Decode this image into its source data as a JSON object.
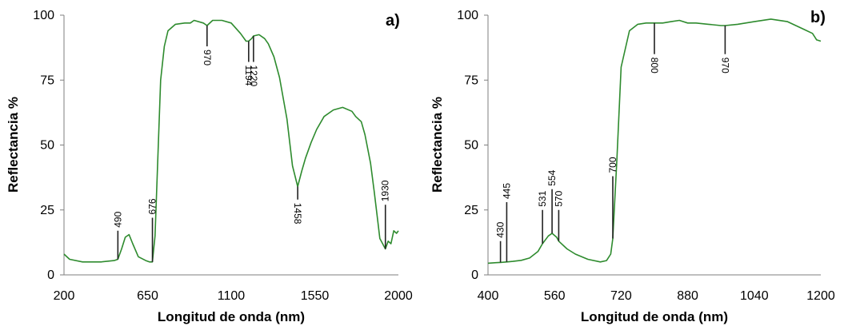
{
  "chart_data": [
    {
      "type": "line",
      "panel_label": "a)",
      "xlabel": "Longitud de onda (nm)",
      "ylabel": "Reflectancia %",
      "xlim": [
        200,
        2000
      ],
      "ylim": [
        0,
        100
      ],
      "xticks": [
        200,
        650,
        1100,
        1550,
        2000
      ],
      "yticks": [
        0,
        25,
        50,
        75,
        100
      ],
      "grid": false,
      "color": "#2e8b2e",
      "series": [
        {
          "x": [
            200,
            230,
            300,
            400,
            470,
            490,
            510,
            530,
            550,
            570,
            600,
            640,
            660,
            676,
            690,
            705,
            720,
            740,
            760,
            800,
            850,
            880,
            900,
            950,
            970,
            1000,
            1050,
            1100,
            1150,
            1180,
            1194,
            1210,
            1220,
            1250,
            1280,
            1300,
            1330,
            1360,
            1400,
            1430,
            1458,
            1480,
            1500,
            1530,
            1560,
            1600,
            1650,
            1700,
            1750,
            1770,
            1800,
            1820,
            1850,
            1870,
            1890,
            1900,
            1915,
            1930,
            1945,
            1960,
            1975,
            1990,
            2000
          ],
          "y": [
            8,
            6,
            5,
            5,
            5.5,
            6,
            10,
            14.5,
            15.5,
            12,
            7,
            5.5,
            5,
            5,
            15,
            45,
            75,
            88,
            94,
            96.5,
            97,
            97,
            98,
            97,
            96,
            98,
            98,
            97,
            93,
            90,
            90,
            91,
            92,
            92.5,
            91,
            89,
            84,
            76,
            60,
            42,
            34,
            40,
            45,
            51,
            56,
            61,
            63.5,
            64.5,
            63,
            61,
            59,
            54,
            43,
            32,
            20,
            14,
            12,
            10,
            13,
            12,
            17,
            16,
            17
          ]
        }
      ],
      "annotations": [
        {
          "label": "490",
          "x": 490,
          "y_from": 6,
          "y_to": 17
        },
        {
          "label": "676",
          "x": 676,
          "y_from": 5,
          "y_to": 22
        },
        {
          "label": "970",
          "x": 970,
          "y_from": 96,
          "y_to": 88
        },
        {
          "label": "1194",
          "x": 1194,
          "y_from": 90,
          "y_to": 82
        },
        {
          "label": "1220",
          "x": 1220,
          "y_from": 92,
          "y_to": 82
        },
        {
          "label": "1458",
          "x": 1458,
          "y_from": 34,
          "y_to": 29
        },
        {
          "label": "1930",
          "x": 1930,
          "y_from": 10,
          "y_to": 27
        }
      ]
    },
    {
      "type": "line",
      "panel_label": "b)",
      "xlabel": "Longitud de onda (nm)",
      "ylabel": "Reflectancia %",
      "xlim": [
        400,
        1200
      ],
      "ylim": [
        0,
        100
      ],
      "xticks": [
        400,
        560,
        720,
        880,
        1040,
        1200
      ],
      "yticks": [
        0,
        25,
        50,
        75,
        100
      ],
      "grid": false,
      "color": "#2e8b2e",
      "series": [
        {
          "x": [
            400,
            420,
            430,
            445,
            460,
            480,
            500,
            520,
            531,
            545,
            554,
            565,
            570,
            590,
            610,
            640,
            670,
            685,
            695,
            700,
            710,
            720,
            740,
            760,
            780,
            800,
            820,
            840,
            860,
            880,
            900,
            930,
            960,
            970,
            1000,
            1040,
            1080,
            1120,
            1160,
            1180,
            1190,
            1200
          ],
          "y": [
            4.5,
            4.7,
            4.8,
            5,
            5.2,
            5.6,
            6.5,
            9,
            12,
            15,
            16,
            14.5,
            13,
            10,
            8,
            6,
            5,
            5.5,
            8,
            14,
            45,
            80,
            94,
            96.5,
            97,
            97,
            97,
            97.5,
            98,
            97,
            97,
            96.5,
            96,
            96,
            96.5,
            97.5,
            98.5,
            97.5,
            94.5,
            93,
            90.5,
            90
          ]
        }
      ],
      "annotations": [
        {
          "label": "430",
          "x": 430,
          "y_from": 4.8,
          "y_to": 13
        },
        {
          "label": "445",
          "x": 445,
          "y_from": 5,
          "y_to": 28
        },
        {
          "label": "531",
          "x": 531,
          "y_from": 12,
          "y_to": 25
        },
        {
          "label": "554",
          "x": 554,
          "y_from": 16,
          "y_to": 33
        },
        {
          "label": "570",
          "x": 570,
          "y_from": 13,
          "y_to": 25
        },
        {
          "label": "700",
          "x": 700,
          "y_from": 14,
          "y_to": 38
        },
        {
          "label": "800",
          "x": 800,
          "y_from": 97,
          "y_to": 85
        },
        {
          "label": "970",
          "x": 970,
          "y_from": 96,
          "y_to": 85
        }
      ]
    }
  ]
}
